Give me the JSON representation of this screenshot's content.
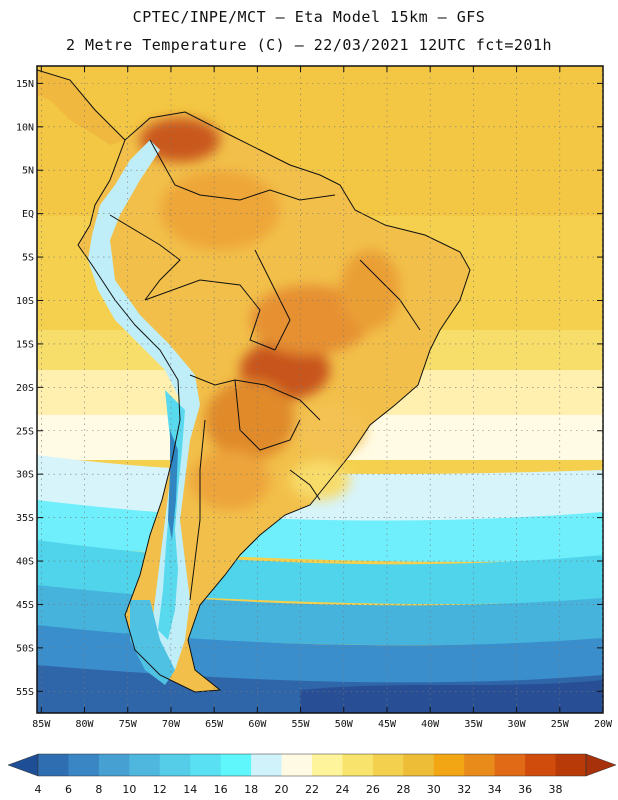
{
  "title": {
    "line1": "CPTEC/INPE/MCT –  Eta Model 15km – GFS",
    "line2": "2 Metre Temperature (C) – 22/03/2021 12UTC fct=201h"
  },
  "map_data": {
    "lat_labels": [
      "15N",
      "10N",
      "5N",
      "EQ",
      "5S",
      "10S",
      "15S",
      "20S",
      "25S",
      "30S",
      "35S",
      "40S",
      "45S",
      "50S",
      "55S"
    ],
    "lat_values": [
      15,
      10,
      5,
      0,
      -5,
      -10,
      -15,
      -20,
      -25,
      -30,
      -35,
      -40,
      -45,
      -50,
      -55
    ],
    "lon_labels": [
      "85W",
      "80W",
      "75W",
      "70W",
      "65W",
      "60W",
      "55W",
      "50W",
      "45W",
      "40W",
      "35W",
      "30W",
      "25W",
      "20W"
    ],
    "lon_values": [
      -85,
      -80,
      -75,
      -70,
      -65,
      -60,
      -55,
      -50,
      -45,
      -40,
      -35,
      -30,
      -25,
      -20
    ],
    "lon_range": [
      -85.5,
      -20
    ],
    "lat_range": [
      -57.5,
      17
    ]
  },
  "colorbar": {
    "values": [
      "4",
      "6",
      "8",
      "10",
      "12",
      "14",
      "16",
      "18",
      "20",
      "22",
      "24",
      "26",
      "28",
      "30",
      "32",
      "34",
      "36",
      "38"
    ],
    "colors": [
      "#2f6eb0",
      "#3a86c4",
      "#47a0d2",
      "#4fb7de",
      "#55cce8",
      "#59e0f2",
      "#5ff7fc",
      "#cff2fb",
      "#fffae3",
      "#fef49b",
      "#f8e46c",
      "#f3d04d",
      "#eebd38",
      "#f3a614",
      "#e88b1b",
      "#e06a15",
      "#cf4c0d",
      "#b83a09"
    ],
    "under_color": "#1e4f96",
    "over_color": "#a6310b"
  }
}
